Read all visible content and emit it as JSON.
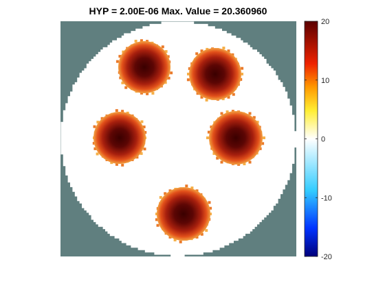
{
  "chart_data": {
    "type": "heatmap",
    "title": "HYP = 2.00E-06  Max. Value = 20.360960",
    "background_color": "#607f7f",
    "field_color": "#ffffff",
    "colormap": "hot-cold (dark blue → blue → cyan → white → yellow → orange → red → dark red)",
    "clim": [
      -20,
      20
    ],
    "colorbar": {
      "ticks": [
        20,
        10,
        0,
        -10,
        -20
      ],
      "tick_labels": [
        "20",
        "10",
        "0",
        "-10",
        "-20"
      ]
    },
    "max_value": 20.36096,
    "hyp": "2.00E-06",
    "inclusions": [
      {
        "name": "blob-top-left",
        "peak": 20.2
      },
      {
        "name": "blob-top-right",
        "peak": 20.36
      },
      {
        "name": "blob-mid-left",
        "peak": 20.0
      },
      {
        "name": "blob-mid-right",
        "peak": 20.1
      },
      {
        "name": "blob-bottom",
        "peak": 20.3
      }
    ],
    "grid": false,
    "legend": "colorbar-right"
  }
}
